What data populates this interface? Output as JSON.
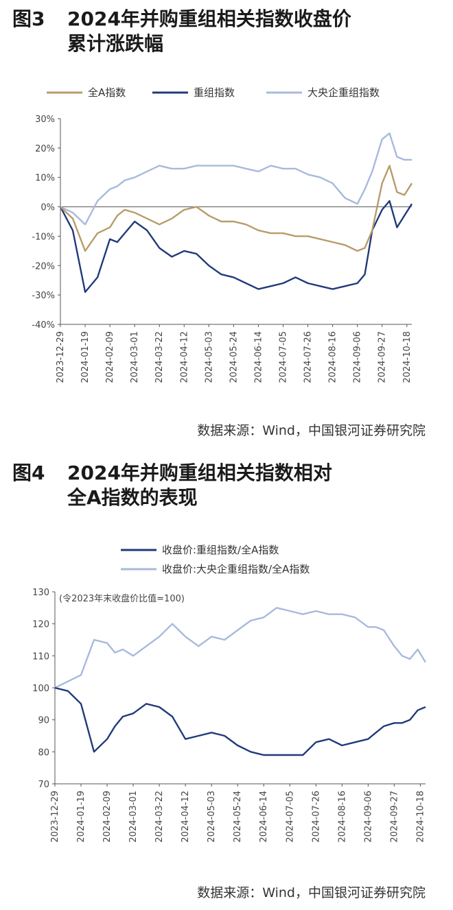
{
  "figures": [
    {
      "number": "图3",
      "title_line1": "2024年并购重组相关指数收盘价",
      "title_line2": "累计涨跌幅",
      "source": "数据来源：Wind，中国银河证券研究院"
    },
    {
      "number": "图4",
      "title_line1": "2024年并购重组相关指数相对",
      "title_line2": "全A指数的表现",
      "source": "数据来源：Wind，中国银河证券研究院"
    }
  ],
  "chart_data": [
    {
      "type": "line",
      "title": "2024年并购重组相关指数收盘价累计涨跌幅",
      "x_ticks": [
        "2023-12-29",
        "2024-01-19",
        "2024-02-09",
        "2024-03-01",
        "2024-03-22",
        "2024-04-12",
        "2024-05-03",
        "2024-05-24",
        "2024-06-14",
        "2024-07-05",
        "2024-07-26",
        "2024-08-16",
        "2024-09-06",
        "2024-09-27",
        "2024-10-18"
      ],
      "y_ticks": [
        "30%",
        "20%",
        "10%",
        "0%",
        "-10%",
        "-20%",
        "-30%",
        "-40%"
      ],
      "ylim": [
        -40,
        30
      ],
      "legend_position": "top",
      "x_index": [
        0,
        0.5,
        1,
        1.5,
        2,
        2.3,
        2.6,
        3,
        3.5,
        4,
        4.5,
        5,
        5.5,
        6,
        6.5,
        7,
        7.5,
        8,
        8.5,
        9,
        9.5,
        10,
        10.5,
        11,
        11.5,
        12,
        12.3,
        12.6,
        13,
        13.3,
        13.6,
        13.9,
        14.2
      ],
      "series": [
        {
          "name": "全A指数",
          "color": "#b89b6a",
          "values": [
            0,
            -4,
            -15,
            -9,
            -7,
            -3,
            -1,
            -2,
            -4,
            -6,
            -4,
            -1,
            0,
            -3,
            -5,
            -5,
            -6,
            -8,
            -9,
            -9,
            -10,
            -10,
            -11,
            -12,
            -13,
            -15,
            -14,
            -8,
            8,
            14,
            5,
            4,
            8
          ]
        },
        {
          "name": "重组指数",
          "color": "#1f3a7a",
          "values": [
            0,
            -8,
            -29,
            -24,
            -11,
            -12,
            -9,
            -5,
            -8,
            -14,
            -17,
            -15,
            -16,
            -20,
            -23,
            -24,
            -26,
            -28,
            -27,
            -26,
            -24,
            -26,
            -27,
            -28,
            -27,
            -26,
            -23,
            -8,
            -1,
            2,
            -7,
            -3,
            1
          ]
        },
        {
          "name": "大央企重组指数",
          "color": "#a8b9dc",
          "values": [
            0,
            -2,
            -6,
            2,
            6,
            7,
            9,
            10,
            12,
            14,
            13,
            13,
            14,
            14,
            14,
            14,
            13,
            12,
            14,
            13,
            13,
            11,
            10,
            8,
            3,
            1,
            6,
            12,
            23,
            25,
            17,
            16,
            16
          ]
        }
      ]
    },
    {
      "type": "line",
      "title": "2024年并购重组相关指数相对全A指数的表现",
      "annotation": "(令2023年末收盘价比值=100)",
      "x_ticks": [
        "2023-12-29",
        "2024-01-19",
        "2024-02-09",
        "2024-03-01",
        "2024-03-22",
        "2024-04-12",
        "2024-05-03",
        "2024-05-24",
        "2024-06-14",
        "2024-07-05",
        "2024-07-26",
        "2024-08-16",
        "2024-09-06",
        "2024-09-27",
        "2024-10-18"
      ],
      "y_ticks": [
        "130",
        "120",
        "110",
        "100",
        "90",
        "80",
        "70"
      ],
      "ylim": [
        70,
        130
      ],
      "legend_position": "top",
      "x_index": [
        0,
        0.5,
        1,
        1.5,
        2,
        2.3,
        2.6,
        3,
        3.5,
        4,
        4.5,
        5,
        5.5,
        6,
        6.5,
        7,
        7.5,
        8,
        8.5,
        9,
        9.5,
        10,
        10.5,
        11,
        11.5,
        12,
        12.3,
        12.6,
        13,
        13.3,
        13.6,
        13.9,
        14.2
      ],
      "series": [
        {
          "name": "收盘价:重组指数/全A指数",
          "color": "#1f3a7a",
          "values": [
            100,
            99,
            95,
            80,
            84,
            88,
            91,
            92,
            95,
            94,
            91,
            84,
            85,
            86,
            85,
            82,
            80,
            79,
            79,
            79,
            79,
            83,
            84,
            82,
            83,
            84,
            86,
            88,
            89,
            89,
            90,
            93,
            94
          ]
        },
        {
          "name": "收盘价:大央企重组指数/全A指数",
          "color": "#a8b9dc",
          "values": [
            100,
            102,
            104,
            115,
            114,
            111,
            112,
            110,
            113,
            116,
            120,
            116,
            113,
            116,
            115,
            118,
            121,
            122,
            125,
            124,
            123,
            124,
            123,
            123,
            122,
            119,
            119,
            118,
            113,
            110,
            109,
            112,
            108
          ]
        }
      ]
    }
  ]
}
